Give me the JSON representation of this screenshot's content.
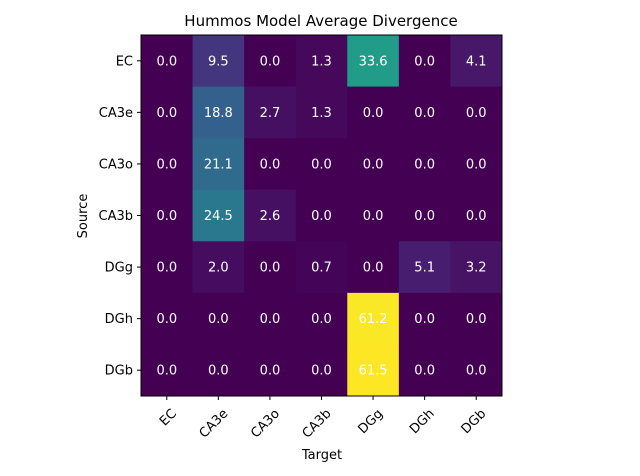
{
  "chart_data": {
    "type": "heatmap",
    "title": "Hummos Model Average Divergence",
    "xlabel": "Target",
    "ylabel": "Source",
    "x_categories": [
      "EC",
      "CA3e",
      "CA3o",
      "CA3b",
      "DGg",
      "DGh",
      "DGb"
    ],
    "y_categories": [
      "EC",
      "CA3e",
      "CA3o",
      "CA3b",
      "DGg",
      "DGh",
      "DGb"
    ],
    "values": [
      [
        0.0,
        9.5,
        0.0,
        1.3,
        33.6,
        0.0,
        4.1
      ],
      [
        0.0,
        18.8,
        2.7,
        1.3,
        0.0,
        0.0,
        0.0
      ],
      [
        0.0,
        21.1,
        0.0,
        0.0,
        0.0,
        0.0,
        0.0
      ],
      [
        0.0,
        24.5,
        2.6,
        0.0,
        0.0,
        0.0,
        0.0
      ],
      [
        0.0,
        2.0,
        0.0,
        0.7,
        0.0,
        5.1,
        3.2
      ],
      [
        0.0,
        0.0,
        0.0,
        0.0,
        61.2,
        0.0,
        0.0
      ],
      [
        0.0,
        0.0,
        0.0,
        0.0,
        61.5,
        0.0,
        0.0
      ]
    ],
    "value_range": [
      0.0,
      61.5
    ],
    "colormap": "viridis",
    "grid": false,
    "legend": "none"
  }
}
